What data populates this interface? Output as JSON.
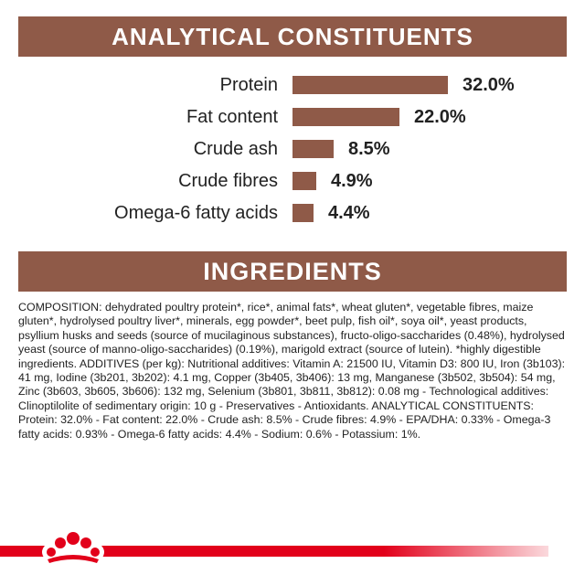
{
  "analytical": {
    "title": "ANALYTICAL CONSTITUENTS",
    "rows": [
      {
        "label": "Protein",
        "value": "32.0%",
        "percent": 32.0
      },
      {
        "label": "Fat content",
        "value": "22.0%",
        "percent": 22.0
      },
      {
        "label": "Crude ash",
        "value": "8.5%",
        "percent": 8.5
      },
      {
        "label": "Crude fibres",
        "value": "4.9%",
        "percent": 4.9
      },
      {
        "label": "Omega-6 fatty acids",
        "value": "4.4%",
        "percent": 4.4
      }
    ]
  },
  "ingredients": {
    "title": "INGREDIENTS",
    "composition": "COMPOSITION: dehydrated poultry protein*, rice*, animal fats*, wheat gluten*, vegetable fibres, maize gluten*, hydrolysed poultry liver*, minerals, egg powder*, beet pulp, fish oil*, soya oil*, yeast products, psyllium husks and seeds (source of mucilaginous substances), fructo-oligo-saccharides (0.48%), hydrolysed yeast (source of manno-oligo-saccharides) (0.19%), marigold extract (source of lutein). *highly digestible ingredients. ADDITIVES (per kg): Nutritional additives: Vitamin A: 21500 IU, Vitamin D3: 800 IU, Iron (3b103): 41 mg, Iodine (3b201, 3b202): 4.1 mg, Copper (3b405, 3b406): 13 mg, Manganese (3b502, 3b504): 54 mg, Zinc (3b603, 3b605, 3b606): 132 mg, Selenium (3b801, 3b811, 3b812): 0.08 mg - Technological additives: Clinoptilolite of sedimentary origin: 10 g - Preservatives - Antioxidants. ANALYTICAL CONSTITUENTS: Protein: 32.0% - Fat content: 22.0% - Crude ash: 8.5% - Crude fibres: 4.9% - EPA/DHA: 0.33% - Omega-3 fatty acids: 0.93% - Omega-6 fatty acids: 4.4% - Sodium: 0.6% - Potassium: 1%."
  },
  "colors": {
    "banner": "#8f5a48",
    "bar": "#8f5a48",
    "brand_red": "#e2001a"
  },
  "footer": {
    "logo_icon": "royal-canin-crown-icon"
  }
}
